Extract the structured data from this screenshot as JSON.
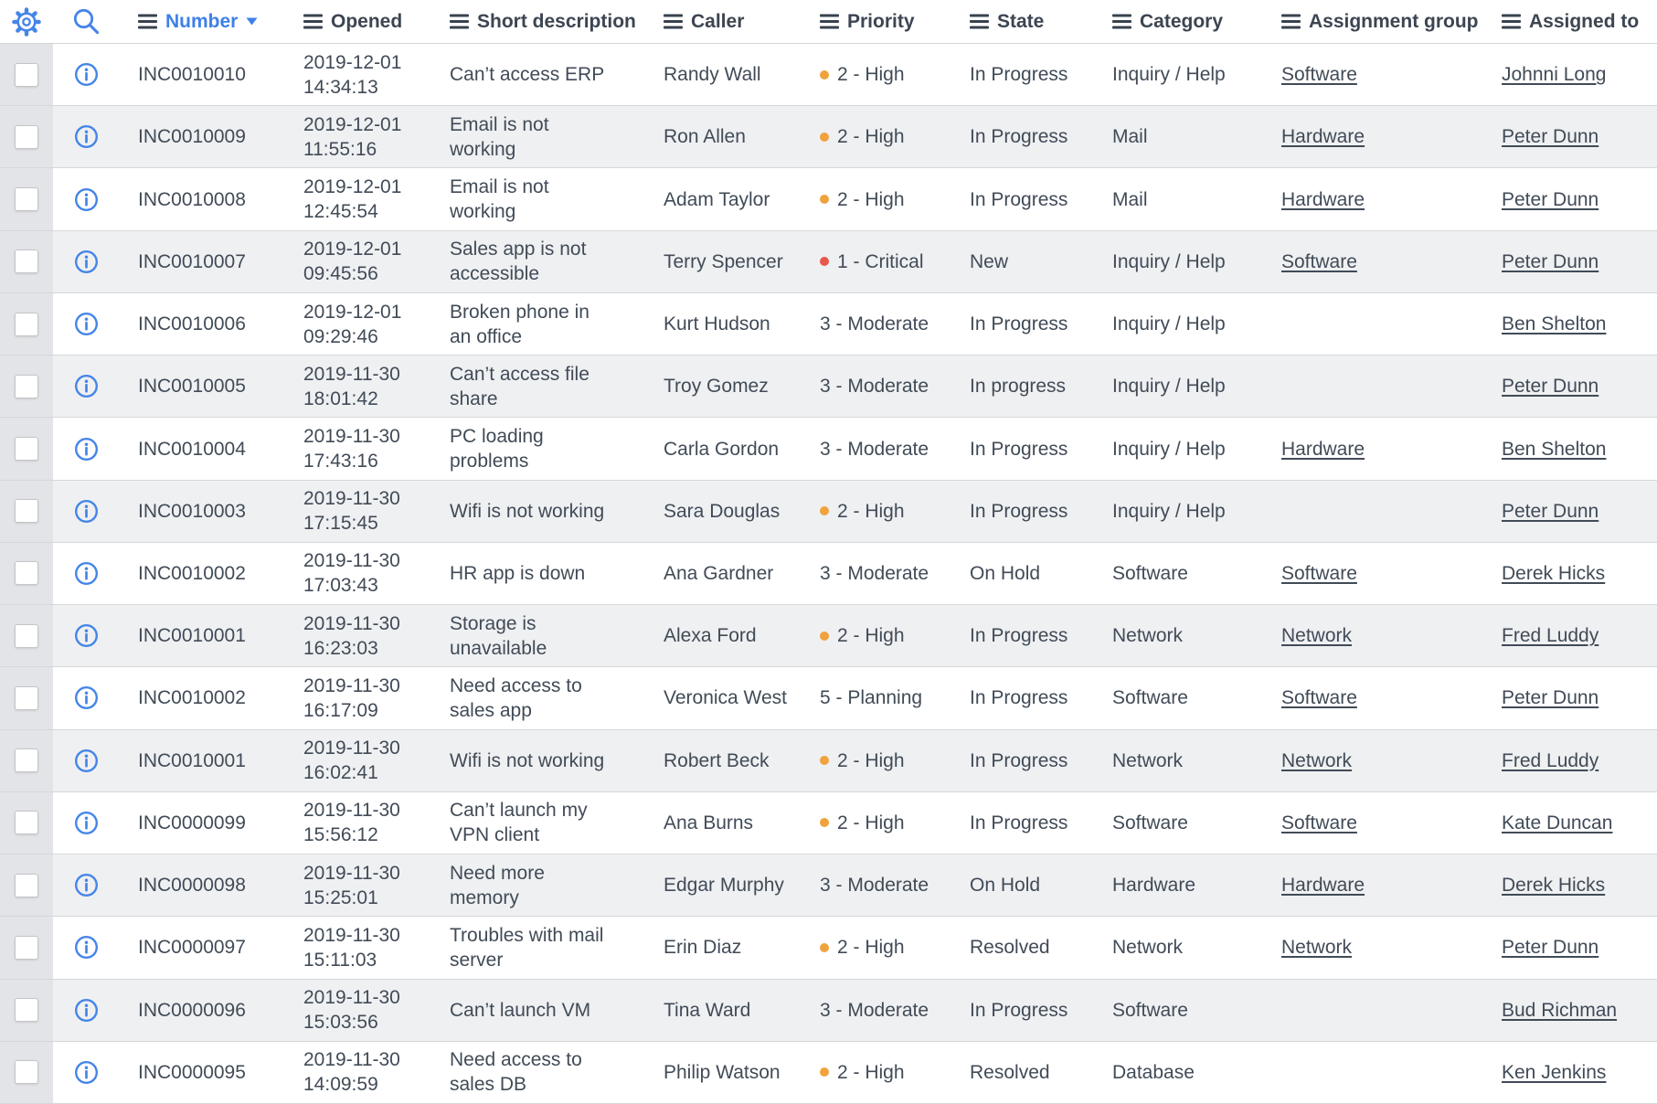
{
  "toolbar": {
    "settings_icon": "gear-icon",
    "search_icon": "search-icon"
  },
  "icons": {
    "column_menu": "menu-icon (three horizontal bars)",
    "sort_indicator": "triangle-down-icon",
    "row_info": "info-circle-icon"
  },
  "colors": {
    "accent_blue": "#4585e8",
    "sorted_column_label": "#3e80e8",
    "header_text": "#3c4551",
    "body_text": "#414b57",
    "dot_orange": "#f0a23c",
    "dot_red": "#ea564e",
    "row_alt_bg": "#eff0f2",
    "gutter_bg": "#e3e4e7",
    "divider": "#d6d7d9"
  },
  "table": {
    "sort": {
      "column": "Number",
      "direction": "descending"
    },
    "columns": [
      {
        "key": "number",
        "label": "Number",
        "sorted": true
      },
      {
        "key": "opened",
        "label": "Opened"
      },
      {
        "key": "short_description",
        "label": "Short description"
      },
      {
        "key": "caller",
        "label": "Caller"
      },
      {
        "key": "priority",
        "label": "Priority"
      },
      {
        "key": "state",
        "label": "State"
      },
      {
        "key": "category",
        "label": "Category"
      },
      {
        "key": "assignment_group",
        "label": "Assignment group"
      },
      {
        "key": "assigned_to",
        "label": "Assigned to"
      }
    ],
    "rows": [
      {
        "number": "INC0010010",
        "opened": "2019-12-01\n14:34:13",
        "short_description": "Can’t access ERP",
        "caller": "Randy Wall",
        "priority": "2 - High",
        "priority_dot": "orange",
        "state": "In Progress",
        "category": "Inquiry / Help",
        "assignment_group": "Software",
        "assigned_to": "Johnni Long"
      },
      {
        "number": "INC0010009",
        "opened": "2019-12-01\n11:55:16",
        "short_description": "Email is not\nworking",
        "caller": "Ron Allen",
        "priority": "2 - High",
        "priority_dot": "orange",
        "state": "In Progress",
        "category": "Mail",
        "assignment_group": "Hardware",
        "assigned_to": "Peter Dunn"
      },
      {
        "number": "INC0010008",
        "opened": "2019-12-01\n12:45:54",
        "short_description": "Email is not\nworking",
        "caller": "Adam Taylor",
        "priority": "2 - High",
        "priority_dot": "orange",
        "state": "In Progress",
        "category": "Mail",
        "assignment_group": "Hardware",
        "assigned_to": "Peter Dunn"
      },
      {
        "number": "INC0010007",
        "opened": "2019-12-01\n09:45:56",
        "short_description": "Sales app is not\naccessible",
        "caller": "Terry Spencer",
        "priority": "1 - Critical",
        "priority_dot": "red",
        "state": "New",
        "category": "Inquiry / Help",
        "assignment_group": "Software",
        "assigned_to": "Peter Dunn"
      },
      {
        "number": "INC0010006",
        "opened": "2019-12-01\n09:29:46",
        "short_description": "Broken phone in\nan office",
        "caller": "Kurt Hudson",
        "priority": "3 - Moderate",
        "priority_dot": null,
        "state": "In Progress",
        "category": "Inquiry / Help",
        "assignment_group": "",
        "assigned_to": "Ben Shelton"
      },
      {
        "number": "INC0010005",
        "opened": "2019-11-30\n18:01:42",
        "short_description": "Can’t access file\nshare",
        "caller": "Troy Gomez",
        "priority": "3 - Moderate",
        "priority_dot": null,
        "state": "In progress",
        "category": "Inquiry / Help",
        "assignment_group": "",
        "assigned_to": "Peter Dunn"
      },
      {
        "number": "INC0010004",
        "opened": "2019-11-30\n17:43:16",
        "short_description": "PC loading\nproblems",
        "caller": "Carla Gordon",
        "priority": "3 - Moderate",
        "priority_dot": null,
        "state": "In Progress",
        "category": "Inquiry / Help",
        "assignment_group": "Hardware",
        "assigned_to": "Ben Shelton"
      },
      {
        "number": "INC0010003",
        "opened": "2019-11-30\n17:15:45",
        "short_description": "Wifi is not working",
        "caller": "Sara Douglas",
        "priority": "2 - High",
        "priority_dot": "orange",
        "state": "In Progress",
        "category": "Inquiry / Help",
        "assignment_group": "",
        "assigned_to": "Peter Dunn"
      },
      {
        "number": "INC0010002",
        "opened": "2019-11-30\n17:03:43",
        "short_description": "HR app is down",
        "caller": "Ana Gardner",
        "priority": "3 - Moderate",
        "priority_dot": null,
        "state": "On Hold",
        "category": "Software",
        "assignment_group": "Software",
        "assigned_to": "Derek Hicks"
      },
      {
        "number": "INC0010001",
        "opened": "2019-11-30\n16:23:03",
        "short_description": "Storage is\nunavailable",
        "caller": "Alexa Ford",
        "priority": "2 - High",
        "priority_dot": "orange",
        "state": "In Progress",
        "category": "Network",
        "assignment_group": "Network",
        "assigned_to": "Fred Luddy"
      },
      {
        "number": "INC0010002",
        "opened": "2019-11-30\n16:17:09",
        "short_description": "Need access to\nsales app",
        "caller": "Veronica West",
        "priority": "5 - Planning",
        "priority_dot": null,
        "state": "In Progress",
        "category": "Software",
        "assignment_group": "Software",
        "assigned_to": "Peter Dunn"
      },
      {
        "number": "INC0010001",
        "opened": "2019-11-30\n16:02:41",
        "short_description": "Wifi is not working",
        "caller": "Robert Beck",
        "priority": "2 - High",
        "priority_dot": "orange",
        "state": "In Progress",
        "category": "Network",
        "assignment_group": "Network",
        "assigned_to": "Fred Luddy"
      },
      {
        "number": "INC0000099",
        "opened": "2019-11-30\n15:56:12",
        "short_description": "Can’t launch my\nVPN client",
        "caller": "Ana Burns",
        "priority": "2 - High",
        "priority_dot": "orange",
        "state": "In Progress",
        "category": "Software",
        "assignment_group": "Software",
        "assigned_to": "Kate Duncan"
      },
      {
        "number": "INC0000098",
        "opened": "2019-11-30\n15:25:01",
        "short_description": "Need more\nmemory",
        "caller": "Edgar Murphy",
        "priority": "3 - Moderate",
        "priority_dot": null,
        "state": "On Hold",
        "category": "Hardware",
        "assignment_group": "Hardware",
        "assigned_to": "Derek Hicks"
      },
      {
        "number": "INC0000097",
        "opened": "2019-11-30\n15:11:03",
        "short_description": "Troubles with mail\nserver",
        "caller": "Erin Diaz",
        "priority": "2 - High",
        "priority_dot": "orange",
        "state": "Resolved",
        "category": "Network",
        "assignment_group": "Network",
        "assigned_to": "Peter Dunn"
      },
      {
        "number": "INC0000096",
        "opened": "2019-11-30\n15:03:56",
        "short_description": "Can’t launch VM",
        "caller": "Tina Ward",
        "priority": "3 - Moderate",
        "priority_dot": null,
        "state": "In Progress",
        "category": "Software",
        "assignment_group": "",
        "assigned_to": "Bud Richman"
      },
      {
        "number": "INC0000095",
        "opened": "2019-11-30\n14:09:59",
        "short_description": "Need access to\nsales DB",
        "caller": "Philip Watson",
        "priority": "2 - High",
        "priority_dot": "orange",
        "state": "Resolved",
        "category": "Database",
        "assignment_group": "",
        "assigned_to": "Ken Jenkins"
      }
    ]
  }
}
